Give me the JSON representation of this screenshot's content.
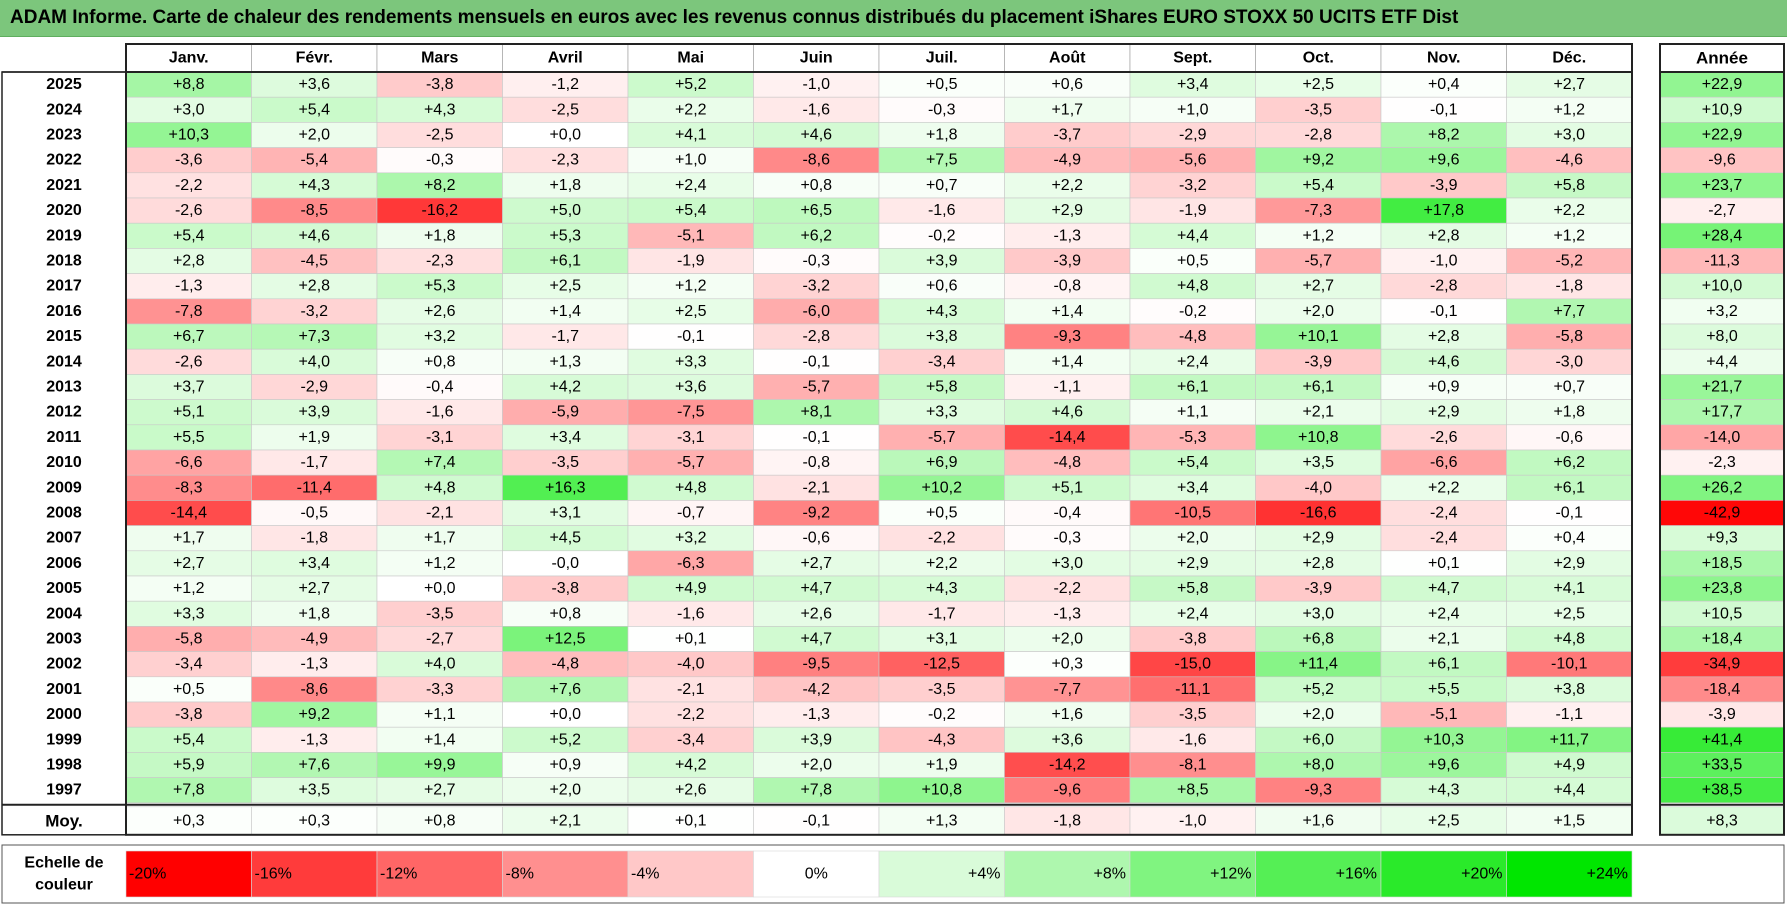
{
  "title": "ADAM Informe. Carte de chaleur des rendements mensuels en euros avec les revenus connus distribués du placement iShares EURO STOXX 50 UCITS ETF Dist",
  "chart_data": {
    "type": "heatmap",
    "months": [
      "Janv.",
      "Févr.",
      "Mars",
      "Avril",
      "Mai",
      "Juin",
      "Juil.",
      "Août",
      "Sept.",
      "Oct.",
      "Nov.",
      "Déc."
    ],
    "year_header": "Année",
    "rows": [
      {
        "year": "2025",
        "values": [
          "+8,8",
          "+3,6",
          "-3,8",
          "-1,2",
          "+5,2",
          "-1,0",
          "+0,5",
          "+0,6",
          "+3,4",
          "+2,5",
          "+0,4",
          "+2,7"
        ],
        "annual": "+22,9"
      },
      {
        "year": "2024",
        "values": [
          "+3,0",
          "+5,4",
          "+4,3",
          "-2,5",
          "+2,2",
          "-1,6",
          "-0,3",
          "+1,7",
          "+1,0",
          "-3,5",
          "-0,1",
          "+1,2"
        ],
        "annual": "+10,9"
      },
      {
        "year": "2023",
        "values": [
          "+10,3",
          "+2,0",
          "-2,5",
          "+0,0",
          "+4,1",
          "+4,6",
          "+1,8",
          "-3,7",
          "-2,9",
          "-2,8",
          "+8,2",
          "+3,0"
        ],
        "annual": "+22,9"
      },
      {
        "year": "2022",
        "values": [
          "-3,6",
          "-5,4",
          "-0,3",
          "-2,3",
          "+1,0",
          "-8,6",
          "+7,5",
          "-4,9",
          "-5,6",
          "+9,2",
          "+9,6",
          "-4,6"
        ],
        "annual": "-9,6"
      },
      {
        "year": "2021",
        "values": [
          "-2,2",
          "+4,3",
          "+8,2",
          "+1,8",
          "+2,4",
          "+0,8",
          "+0,7",
          "+2,2",
          "-3,2",
          "+5,4",
          "-3,9",
          "+5,8"
        ],
        "annual": "+23,7"
      },
      {
        "year": "2020",
        "values": [
          "-2,6",
          "-8,5",
          "-16,2",
          "+5,0",
          "+5,4",
          "+6,5",
          "-1,6",
          "+2,9",
          "-1,9",
          "-7,3",
          "+17,8",
          "+2,2"
        ],
        "annual": "-2,7"
      },
      {
        "year": "2019",
        "values": [
          "+5,4",
          "+4,6",
          "+1,8",
          "+5,3",
          "-5,1",
          "+6,2",
          "-0,2",
          "-1,3",
          "+4,4",
          "+1,2",
          "+2,8",
          "+1,2"
        ],
        "annual": "+28,4"
      },
      {
        "year": "2018",
        "values": [
          "+2,8",
          "-4,5",
          "-2,3",
          "+6,1",
          "-1,9",
          "-0,3",
          "+3,9",
          "-3,9",
          "+0,5",
          "-5,7",
          "-1,0",
          "-5,2"
        ],
        "annual": "-11,3"
      },
      {
        "year": "2017",
        "values": [
          "-1,3",
          "+2,8",
          "+5,3",
          "+2,5",
          "+1,2",
          "-3,2",
          "+0,6",
          "-0,8",
          "+4,8",
          "+2,7",
          "-2,8",
          "-1,8"
        ],
        "annual": "+10,0"
      },
      {
        "year": "2016",
        "values": [
          "-7,8",
          "-3,2",
          "+2,6",
          "+1,4",
          "+2,5",
          "-6,0",
          "+4,3",
          "+1,4",
          "-0,2",
          "+2,0",
          "-0,1",
          "+7,7"
        ],
        "annual": "+3,2"
      },
      {
        "year": "2015",
        "values": [
          "+6,7",
          "+7,3",
          "+3,2",
          "-1,7",
          "-0,1",
          "-2,8",
          "+3,8",
          "-9,3",
          "-4,8",
          "+10,1",
          "+2,8",
          "-5,8"
        ],
        "annual": "+8,0"
      },
      {
        "year": "2014",
        "values": [
          "-2,6",
          "+4,0",
          "+0,8",
          "+1,3",
          "+3,3",
          "-0,1",
          "-3,4",
          "+1,4",
          "+2,4",
          "-3,9",
          "+4,6",
          "-3,0"
        ],
        "annual": "+4,4"
      },
      {
        "year": "2013",
        "values": [
          "+3,7",
          "-2,9",
          "-0,4",
          "+4,2",
          "+3,6",
          "-5,7",
          "+5,8",
          "-1,1",
          "+6,1",
          "+6,1",
          "+0,9",
          "+0,7"
        ],
        "annual": "+21,7"
      },
      {
        "year": "2012",
        "values": [
          "+5,1",
          "+3,9",
          "-1,6",
          "-5,9",
          "-7,5",
          "+8,1",
          "+3,3",
          "+4,6",
          "+1,1",
          "+2,1",
          "+2,9",
          "+1,8"
        ],
        "annual": "+17,7"
      },
      {
        "year": "2011",
        "values": [
          "+5,5",
          "+1,9",
          "-3,1",
          "+3,4",
          "-3,1",
          "-0,1",
          "-5,7",
          "-14,4",
          "-5,3",
          "+10,8",
          "-2,6",
          "-0,6"
        ],
        "annual": "-14,0"
      },
      {
        "year": "2010",
        "values": [
          "-6,6",
          "-1,7",
          "+7,4",
          "-3,5",
          "-5,7",
          "-0,8",
          "+6,9",
          "-4,8",
          "+5,4",
          "+3,5",
          "-6,6",
          "+6,2"
        ],
        "annual": "-2,3"
      },
      {
        "year": "2009",
        "values": [
          "-8,3",
          "-11,4",
          "+4,8",
          "+16,3",
          "+4,8",
          "-2,1",
          "+10,2",
          "+5,1",
          "+3,4",
          "-4,0",
          "+2,2",
          "+6,1"
        ],
        "annual": "+26,2"
      },
      {
        "year": "2008",
        "values": [
          "-14,4",
          "-0,5",
          "-2,1",
          "+3,1",
          "-0,7",
          "-9,2",
          "+0,5",
          "-0,4",
          "-10,5",
          "-16,6",
          "-2,4",
          "-0,1"
        ],
        "annual": "-42,9"
      },
      {
        "year": "2007",
        "values": [
          "+1,7",
          "-1,8",
          "+1,7",
          "+4,5",
          "+3,2",
          "-0,6",
          "-2,2",
          "-0,3",
          "+2,0",
          "+2,9",
          "-2,4",
          "+0,4"
        ],
        "annual": "+9,3"
      },
      {
        "year": "2006",
        "values": [
          "+2,7",
          "+3,4",
          "+1,2",
          "-0,0",
          "-6,3",
          "+2,7",
          "+2,2",
          "+3,0",
          "+2,9",
          "+2,8",
          "+0,1",
          "+2,9"
        ],
        "annual": "+18,5"
      },
      {
        "year": "2005",
        "values": [
          "+1,2",
          "+2,7",
          "+0,0",
          "-3,8",
          "+4,9",
          "+4,7",
          "+4,3",
          "-2,2",
          "+5,8",
          "-3,9",
          "+4,7",
          "+4,1"
        ],
        "annual": "+23,8"
      },
      {
        "year": "2004",
        "values": [
          "+3,3",
          "+1,8",
          "-3,5",
          "+0,8",
          "-1,6",
          "+2,6",
          "-1,7",
          "-1,3",
          "+2,4",
          "+3,0",
          "+2,4",
          "+2,5"
        ],
        "annual": "+10,5"
      },
      {
        "year": "2003",
        "values": [
          "-5,8",
          "-4,9",
          "-2,7",
          "+12,5",
          "+0,1",
          "+4,7",
          "+3,1",
          "+2,0",
          "-3,8",
          "+6,8",
          "+2,1",
          "+4,8"
        ],
        "annual": "+18,4"
      },
      {
        "year": "2002",
        "values": [
          "-3,4",
          "-1,3",
          "+4,0",
          "-4,8",
          "-4,0",
          "-9,5",
          "-12,5",
          "+0,3",
          "-15,0",
          "+11,4",
          "+6,1",
          "-10,1"
        ],
        "annual": "-34,9"
      },
      {
        "year": "2001",
        "values": [
          "+0,5",
          "-8,6",
          "-3,3",
          "+7,6",
          "-2,1",
          "-4,2",
          "-3,5",
          "-7,7",
          "-11,1",
          "+5,2",
          "+5,5",
          "+3,8"
        ],
        "annual": "-18,4"
      },
      {
        "year": "2000",
        "values": [
          "-3,8",
          "+9,2",
          "+1,1",
          "+0,0",
          "-2,2",
          "-1,3",
          "-0,2",
          "+1,6",
          "-3,5",
          "+2,0",
          "-5,1",
          "-1,1"
        ],
        "annual": "-3,9"
      },
      {
        "year": "1999",
        "values": [
          "+5,4",
          "-1,3",
          "+1,4",
          "+5,2",
          "-3,4",
          "+3,9",
          "-4,3",
          "+3,6",
          "-1,6",
          "+6,0",
          "+10,3",
          "+11,7"
        ],
        "annual": "+41,4"
      },
      {
        "year": "1998",
        "values": [
          "+5,9",
          "+7,6",
          "+9,9",
          "+0,9",
          "+4,2",
          "+2,0",
          "+1,9",
          "-14,2",
          "-8,1",
          "+8,0",
          "+9,6",
          "+4,9"
        ],
        "annual": "+33,5"
      },
      {
        "year": "1997",
        "values": [
          "+7,8",
          "+3,5",
          "+2,7",
          "+2,0",
          "+2,6",
          "+7,8",
          "+10,8",
          "-9,6",
          "+8,5",
          "-9,3",
          "+4,3",
          "+4,4"
        ],
        "annual": "+38,5"
      }
    ],
    "average": {
      "label": "Moy.",
      "values": [
        "+0,3",
        "+0,3",
        "+0,8",
        "+2,1",
        "+0,1",
        "-0,1",
        "+1,3",
        "-1,8",
        "-1,0",
        "+1,6",
        "+2,5",
        "+1,5"
      ],
      "annual": "+8,3"
    },
    "scale": {
      "label_line1": "Echelle de",
      "label_line2": "couleur",
      "ticks": [
        "-20%",
        "-16%",
        "-12%",
        "-8%",
        "-4%",
        "0%",
        "+4%",
        "+8%",
        "+12%",
        "+16%",
        "+20%",
        "+24%"
      ],
      "colors": [
        "#ff0000",
        "#ff3b3b",
        "#ff6666",
        "#ff8f8f",
        "#ffc8c8",
        "#ffffff",
        "#d9fbd9",
        "#aef7ae",
        "#80f480",
        "#55ef55",
        "#2aea2a",
        "#00e600"
      ]
    },
    "colors": {
      "negative_max": "#ff0000",
      "neutral": "#ffffff",
      "positive_max": "#00e600"
    }
  }
}
